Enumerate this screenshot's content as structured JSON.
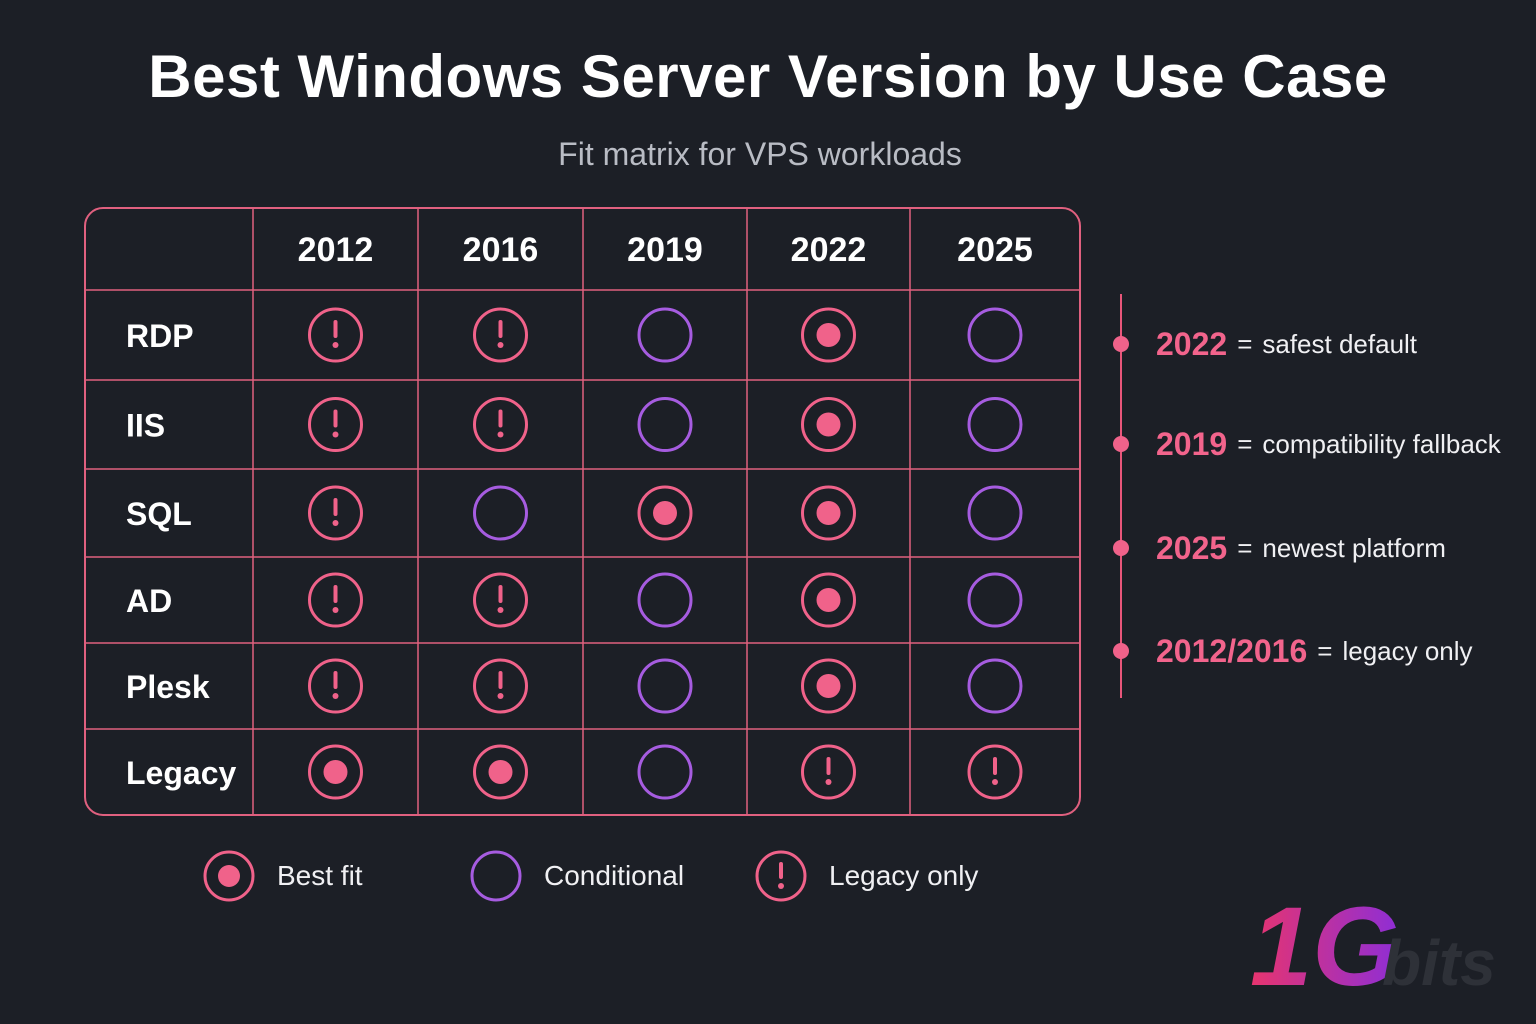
{
  "title": "Best Windows Server Version by Use Case",
  "subtitle": "Fit matrix for VPS workloads",
  "chart_data": {
    "type": "table",
    "columns": [
      "2012",
      "2016",
      "2019",
      "2022",
      "2025"
    ],
    "rows": [
      {
        "label": "RDP",
        "values": [
          "legacy",
          "legacy",
          "conditional",
          "best",
          "conditional"
        ]
      },
      {
        "label": "IIS",
        "values": [
          "legacy",
          "legacy",
          "conditional",
          "best",
          "conditional"
        ]
      },
      {
        "label": "SQL",
        "values": [
          "legacy",
          "conditional",
          "best",
          "best",
          "conditional"
        ]
      },
      {
        "label": "AD",
        "values": [
          "legacy",
          "legacy",
          "conditional",
          "best",
          "conditional"
        ]
      },
      {
        "label": "Plesk",
        "values": [
          "legacy",
          "legacy",
          "conditional",
          "best",
          "conditional"
        ]
      },
      {
        "label": "Legacy",
        "values": [
          "best",
          "best",
          "conditional",
          "legacy",
          "legacy"
        ]
      }
    ],
    "legend": [
      {
        "key": "best",
        "label": "Best fit"
      },
      {
        "key": "conditional",
        "label": "Conditional"
      },
      {
        "key": "legacy",
        "label": "Legacy only"
      }
    ]
  },
  "notes": [
    {
      "year": "2022",
      "eq": "=",
      "desc": "safest default"
    },
    {
      "year": "2019",
      "eq": "=",
      "desc": "compatibility fallback"
    },
    {
      "year": "2025",
      "eq": "=",
      "desc": "newest platform"
    },
    {
      "year": "2012/2016",
      "eq": "=",
      "desc": "legacy only"
    }
  ],
  "logo": {
    "mark": "1G",
    "text": "bits"
  },
  "colors": {
    "background": "#1c1f26",
    "pink": "#f0628a",
    "grid_pink": "#e0607f",
    "purple": "#a65ce0",
    "note_year": "#f2648c"
  },
  "icons": {
    "best": "filled-dot-ring-icon",
    "conditional": "empty-ring-icon",
    "legacy": "exclamation-ring-icon"
  }
}
